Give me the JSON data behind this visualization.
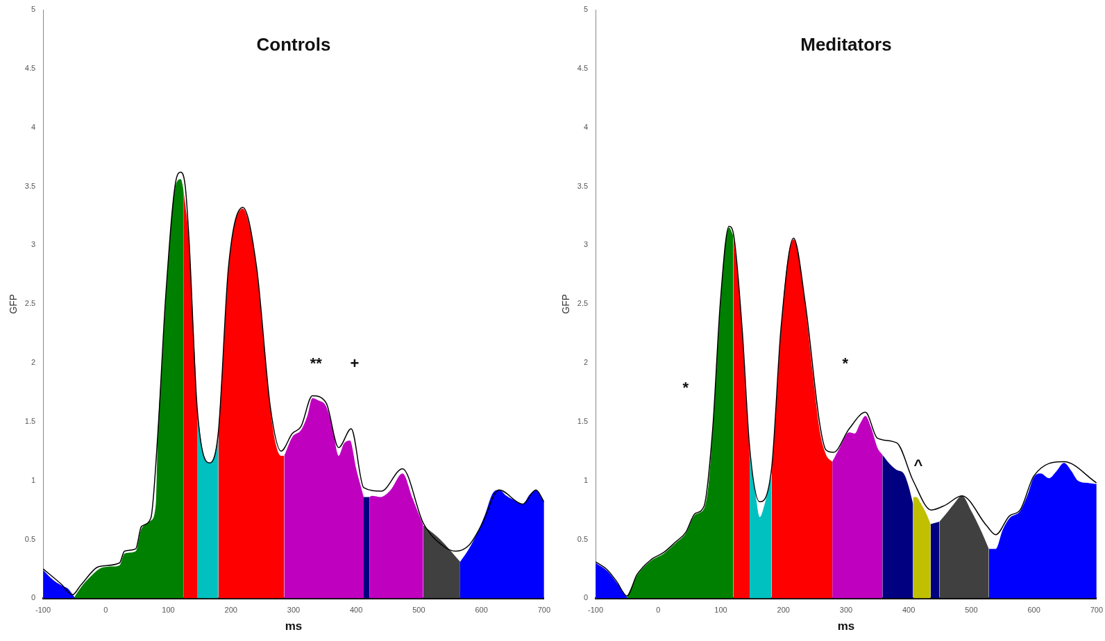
{
  "chart_data": [
    {
      "type": "area",
      "title": "Controls",
      "xlabel": "ms",
      "ylabel": "GFP",
      "xlim": [
        -100,
        700
      ],
      "xticks": [
        -100,
        0,
        100,
        200,
        300,
        400,
        500,
        600,
        700
      ],
      "ylim": [
        0,
        5
      ],
      "yticks": [
        0,
        0.5,
        1,
        1.5,
        2,
        2.5,
        3,
        3.5,
        4,
        4.5,
        5
      ],
      "annotations": [
        "**",
        "+"
      ],
      "series": [
        {
          "type": "area",
          "color": "#0000ff",
          "x": [
            -100,
            -85,
            -71,
            -60,
            -50
          ],
          "values": [
            0.24,
            0.16,
            0.11,
            0.08,
            0.01
          ]
        },
        {
          "type": "area",
          "color": "#008000",
          "x": [
            -50,
            -40,
            -25,
            -10,
            10,
            22,
            30,
            48,
            57,
            72,
            80,
            83,
            90,
            96,
            105,
            113,
            120,
            124
          ],
          "values": [
            0.01,
            0.09,
            0.18,
            0.25,
            0.27,
            0.28,
            0.38,
            0.4,
            0.59,
            0.66,
            0.8,
            1.36,
            2.0,
            2.55,
            3.2,
            3.53,
            3.56,
            3.48
          ]
        },
        {
          "type": "area",
          "color": "#ff0000",
          "x": [
            124,
            133,
            140,
            146
          ],
          "values": [
            3.48,
            3.03,
            2.3,
            1.6
          ]
        },
        {
          "type": "area",
          "color": "#00c0c0",
          "x": [
            146,
            155,
            166,
            175,
            180
          ],
          "values": [
            1.6,
            1.25,
            1.15,
            1.25,
            1.41
          ]
        },
        {
          "type": "area",
          "color": "#ff0000",
          "x": [
            180,
            188,
            196,
            205,
            219,
            230,
            241,
            252,
            263,
            272,
            280,
            285
          ],
          "values": [
            1.41,
            2.1,
            2.79,
            3.15,
            3.31,
            3.15,
            2.79,
            2.2,
            1.6,
            1.3,
            1.21,
            1.21
          ]
        },
        {
          "type": "area",
          "color": "#bf00bf",
          "x": [
            285,
            298,
            312,
            322,
            330,
            340,
            352,
            362,
            372,
            380,
            390,
            400,
            412
          ],
          "values": [
            1.21,
            1.37,
            1.43,
            1.55,
            1.7,
            1.68,
            1.63,
            1.45,
            1.21,
            1.31,
            1.34,
            1.1,
            0.86
          ]
        },
        {
          "type": "area",
          "color": "#000080",
          "x": [
            412,
            421
          ],
          "values": [
            0.86,
            0.86
          ]
        },
        {
          "type": "area",
          "color": "#bf00bf",
          "x": [
            421,
            425,
            439,
            455,
            474,
            490,
            507
          ],
          "values": [
            0.86,
            0.87,
            0.86,
            0.92,
            1.06,
            0.85,
            0.62
          ]
        },
        {
          "type": "area",
          "color": "#404040",
          "x": [
            507,
            534,
            566
          ],
          "values": [
            0.62,
            0.5,
            0.31
          ]
        },
        {
          "type": "area",
          "color": "#0000ff",
          "x": [
            566,
            580,
            592,
            605,
            619,
            628,
            640,
            654,
            666,
            677,
            687,
            700
          ],
          "values": [
            0.31,
            0.42,
            0.54,
            0.7,
            0.9,
            0.92,
            0.87,
            0.83,
            0.8,
            0.88,
            0.92,
            0.82
          ]
        },
        {
          "type": "line",
          "color": "#000000",
          "x": [
            -100,
            -71,
            -53,
            -40,
            -10,
            22,
            30,
            48,
            57,
            72,
            83,
            96,
            113,
            120,
            127,
            133,
            146,
            166,
            180,
            196,
            219,
            241,
            263,
            280,
            298,
            312,
            330,
            352,
            372,
            392,
            412,
            440,
            474,
            507,
            540,
            559,
            580,
            600,
            628,
            666,
            687,
            700
          ],
          "values": [
            0.25,
            0.12,
            0.03,
            0.11,
            0.27,
            0.3,
            0.4,
            0.42,
            0.61,
            0.68,
            1.38,
            2.58,
            3.57,
            3.62,
            3.5,
            3.05,
            1.62,
            1.15,
            1.42,
            2.81,
            3.32,
            2.81,
            1.62,
            1.25,
            1.4,
            1.46,
            1.72,
            1.66,
            1.28,
            1.44,
            0.94,
            0.91,
            1.1,
            0.64,
            0.44,
            0.4,
            0.45,
            0.62,
            0.92,
            0.8,
            0.92,
            0.82
          ]
        }
      ]
    },
    {
      "type": "area",
      "title": "Meditators",
      "xlabel": "ms",
      "ylabel": "GFP",
      "xlim": [
        -100,
        700
      ],
      "xticks": [
        -100,
        0,
        100,
        200,
        300,
        400,
        500,
        600,
        700
      ],
      "ylim": [
        0,
        5
      ],
      "yticks": [
        0,
        0.5,
        1,
        1.5,
        2,
        2.5,
        3,
        3.5,
        4,
        4.5,
        5
      ],
      "annotations": [
        "*",
        "*",
        "^"
      ],
      "series": [
        {
          "type": "area",
          "color": "#0000ff",
          "x": [
            -100,
            -81,
            -66,
            -50
          ],
          "values": [
            0.3,
            0.23,
            0.13,
            0.01
          ]
        },
        {
          "type": "area",
          "color": "#008000",
          "x": [
            -50,
            -34,
            -11,
            9,
            28,
            44,
            59,
            73,
            80,
            87,
            99,
            106,
            113,
            120
          ],
          "values": [
            0.01,
            0.19,
            0.32,
            0.38,
            0.47,
            0.55,
            0.71,
            0.76,
            0.95,
            1.42,
            2.48,
            2.95,
            3.15,
            3.08
          ]
        },
        {
          "type": "area",
          "color": "#ff0000",
          "x": [
            120,
            127,
            134,
            140,
            146
          ],
          "values": [
            3.08,
            2.75,
            2.27,
            1.7,
            1.21
          ]
        },
        {
          "type": "area",
          "color": "#00c0c0",
          "x": [
            146,
            155,
            162,
            170,
            181
          ],
          "values": [
            1.21,
            0.9,
            0.69,
            0.8,
            1.04
          ]
        },
        {
          "type": "area",
          "color": "#ff0000",
          "x": [
            181,
            188,
            196,
            205,
            216,
            226,
            235,
            247,
            258,
            268,
            278
          ],
          "values": [
            1.04,
            1.6,
            2.27,
            2.8,
            3.05,
            2.85,
            2.48,
            1.9,
            1.42,
            1.22,
            1.16
          ]
        },
        {
          "type": "area",
          "color": "#bf00bf",
          "x": [
            278,
            290,
            305,
            314,
            322,
            331,
            340,
            350,
            358
          ],
          "values": [
            1.16,
            1.28,
            1.41,
            1.4,
            1.48,
            1.55,
            1.45,
            1.28,
            1.22
          ]
        },
        {
          "type": "area",
          "color": "#000080",
          "x": [
            358,
            370,
            381,
            392,
            400,
            407
          ],
          "values": [
            1.22,
            1.14,
            1.09,
            1.06,
            0.95,
            0.8
          ]
        },
        {
          "type": "area",
          "color": "#c0c000",
          "x": [
            407,
            412,
            420,
            428,
            435
          ],
          "values": [
            0.86,
            0.86,
            0.8,
            0.72,
            0.63
          ]
        },
        {
          "type": "area",
          "color": "#000080",
          "x": [
            435,
            449
          ],
          "values": [
            0.63,
            0.65
          ]
        },
        {
          "type": "area",
          "color": "#404040",
          "x": [
            449,
            460,
            472,
            485,
            500,
            515,
            528
          ],
          "values": [
            0.65,
            0.72,
            0.8,
            0.87,
            0.74,
            0.58,
            0.42
          ]
        },
        {
          "type": "area",
          "color": "#0000ff",
          "x": [
            528,
            539,
            550,
            561,
            578,
            590,
            600,
            611,
            624,
            636,
            648,
            660,
            670,
            685,
            700
          ],
          "values": [
            0.42,
            0.42,
            0.58,
            0.68,
            0.74,
            0.88,
            1.03,
            1.06,
            1.02,
            1.08,
            1.15,
            1.08,
            1.0,
            0.98,
            0.97
          ]
        },
        {
          "type": "line",
          "color": "#000000",
          "x": [
            -100,
            -81,
            -66,
            -50,
            -34,
            -11,
            9,
            28,
            44,
            59,
            73,
            87,
            99,
            113,
            120,
            134,
            146,
            162,
            181,
            196,
            216,
            235,
            258,
            268,
            280,
            305,
            331,
            350,
            381,
            407,
            436,
            458,
            485,
            524,
            539,
            561,
            578,
            600,
            648,
            700
          ],
          "values": [
            0.31,
            0.24,
            0.14,
            0.02,
            0.2,
            0.33,
            0.39,
            0.48,
            0.56,
            0.72,
            0.78,
            1.44,
            2.5,
            3.16,
            3.1,
            2.29,
            1.28,
            0.82,
            1.1,
            2.29,
            3.06,
            2.5,
            1.48,
            1.26,
            1.24,
            1.44,
            1.58,
            1.36,
            1.32,
            1.0,
            0.75,
            0.79,
            0.87,
            0.62,
            0.54,
            0.7,
            0.75,
            1.04,
            1.16,
            0.98
          ]
        }
      ]
    }
  ]
}
